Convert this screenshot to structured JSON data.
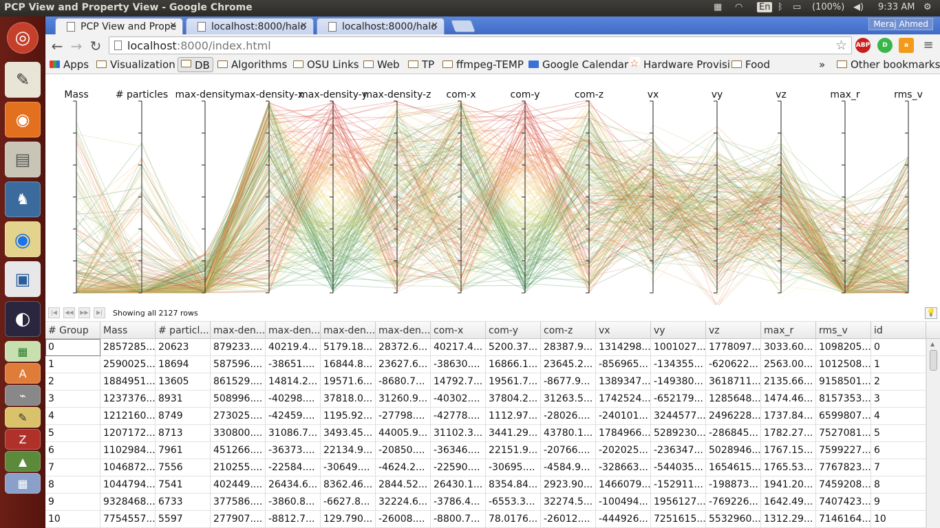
{
  "os": {
    "window_title": "PCP View and Property View - Google Chrome",
    "lang": "En",
    "battery": "(100%)",
    "clock": "9:33 AM"
  },
  "browser": {
    "tabs": [
      {
        "label": "PCP View and Prope",
        "active": true
      },
      {
        "label": "localhost:8000/halo",
        "active": false
      },
      {
        "label": "localhost:8000/halo",
        "active": false
      }
    ],
    "user": "Meraj Ahmed",
    "url_host": "localhost",
    "url_rest": ":8000/index.html",
    "bookmarks": [
      "Apps",
      "Visualization",
      "DB",
      "Algorithms",
      "OSU Links",
      "Web",
      "TP",
      "ffmpeg-TEMP",
      "Google Calendar",
      "Hardware Provisi",
      "Food",
      "»",
      "Other bookmarks"
    ]
  },
  "pcp": {
    "axes": [
      "Mass",
      "# particles",
      "max-density",
      "max-density-x",
      "max-density-y",
      "max-density-z",
      "com-x",
      "com-y",
      "com-z",
      "vx",
      "vy",
      "vz",
      "max_r",
      "rms_v"
    ]
  },
  "grid": {
    "status": "Showing all 2127 rows",
    "columns": [
      "# Group",
      "Mass",
      "# particl...",
      "max-den...",
      "max-den...",
      "max-den...",
      "max-den...",
      "com-x",
      "com-y",
      "com-z",
      "vx",
      "vy",
      "vz",
      "max_r",
      "rms_v",
      "id"
    ],
    "rows": [
      [
        "0",
        "2857285...",
        "20623",
        "879233....",
        "40219.4...",
        "5179.18...",
        "28372.6...",
        "40217.4...",
        "5200.37...",
        "28387.9...",
        "1314298...",
        "1001027...",
        "1778097...",
        "3033.60...",
        "1098205...",
        "0"
      ],
      [
        "1",
        "2590025...",
        "18694",
        "587596....",
        "-38651....",
        "16844.8...",
        "23627.6...",
        "-38630....",
        "16866.1...",
        "23645.2...",
        "-856965...",
        "-134355...",
        "-620622...",
        "2563.00...",
        "1012508...",
        "1"
      ],
      [
        "2",
        "1884951...",
        "13605",
        "861529....",
        "14814.2...",
        "19571.6...",
        "-8680.7...",
        "14792.7...",
        "19561.7...",
        "-8677.9...",
        "1389347...",
        "-149380...",
        "3618711...",
        "2135.66...",
        "9158501...",
        "2"
      ],
      [
        "3",
        "1237376...",
        "8931",
        "508996....",
        "-40298....",
        "37818.0...",
        "31260.9...",
        "-40302....",
        "37804.2...",
        "31263.5...",
        "1742524...",
        "-652179...",
        "1285648...",
        "1474.46...",
        "8157353...",
        "3"
      ],
      [
        "4",
        "1212160...",
        "8749",
        "273025....",
        "-42459....",
        "1195.92...",
        "-27798....",
        "-42778....",
        "1112.97...",
        "-28026....",
        "-240101...",
        "3244577...",
        "2496228...",
        "1737.84...",
        "6599807...",
        "4"
      ],
      [
        "5",
        "1207172...",
        "8713",
        "330800....",
        "31086.7...",
        "3493.45...",
        "44005.9...",
        "31102.3...",
        "3441.29...",
        "43780.1...",
        "1784966...",
        "5289230...",
        "-286845...",
        "1782.27...",
        "7527081...",
        "5"
      ],
      [
        "6",
        "1102984...",
        "7961",
        "451266....",
        "-36373....",
        "22134.9...",
        "-20850....",
        "-36346....",
        "22151.9...",
        "-20766....",
        "-202025...",
        "-236347...",
        "5028946...",
        "1767.15...",
        "7599227...",
        "6"
      ],
      [
        "7",
        "1046872...",
        "7556",
        "210255....",
        "-22584....",
        "-30649....",
        "-4624.2...",
        "-22590....",
        "-30695....",
        "-4584.9...",
        "-328663...",
        "-544035...",
        "1654615...",
        "1765.53...",
        "7767823...",
        "7"
      ],
      [
        "8",
        "1044794...",
        "7541",
        "402449....",
        "26434.6...",
        "8362.46...",
        "2844.52...",
        "26430.1...",
        "8354.84...",
        "2923.90...",
        "1466079...",
        "-152911...",
        "-198873...",
        "1941.20...",
        "7459208...",
        "8"
      ],
      [
        "9",
        "9328468...",
        "6733",
        "377586....",
        "-3860.8...",
        "-6627.8...",
        "32224.6...",
        "-3786.4...",
        "-6553.3...",
        "32274.5...",
        "-100494...",
        "1956127...",
        "-769226...",
        "1642.49...",
        "7407423...",
        "9"
      ],
      [
        "10",
        "7754557...",
        "5597",
        "277907....",
        "-8812.7...",
        "129.790...",
        "-26008....",
        "-8800.7...",
        "78.0176...",
        "-26012....",
        "-444926...",
        "7251615...",
        "5532960...",
        "1312.29...",
        "7146164...",
        "10"
      ]
    ]
  }
}
